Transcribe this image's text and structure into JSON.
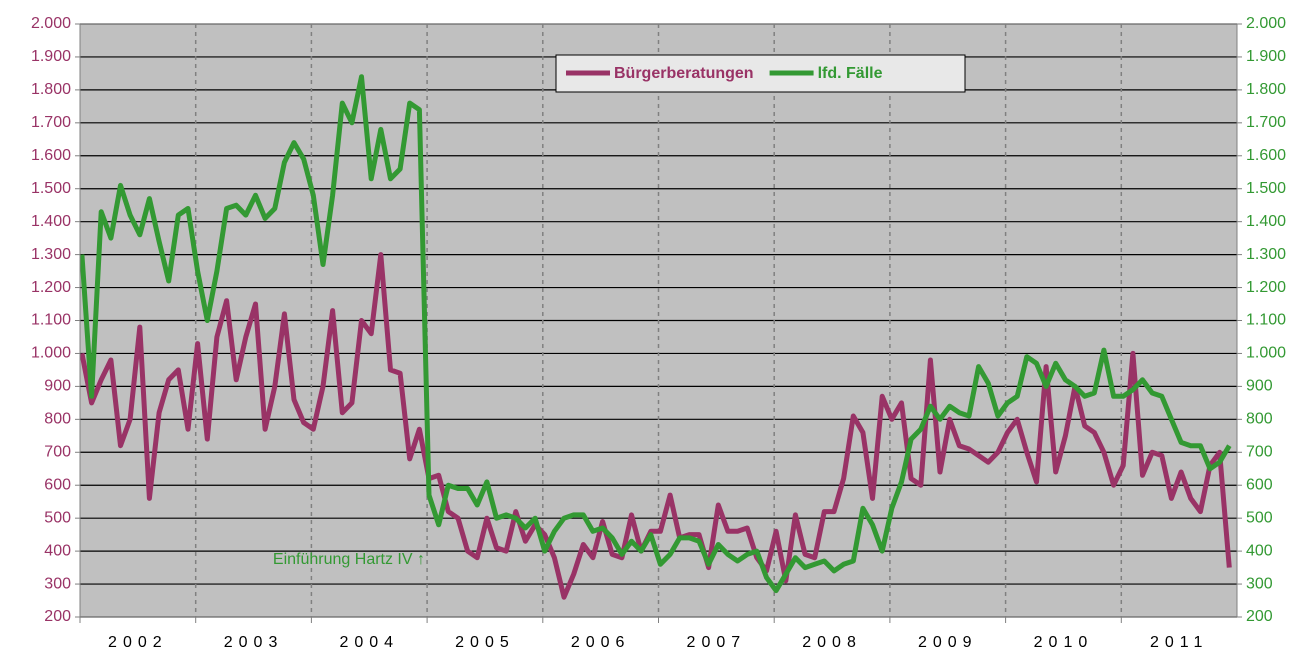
{
  "chart_data": {
    "type": "line",
    "categories": [
      null,
      null,
      null,
      null,
      null,
      "2002",
      null,
      null,
      null,
      null,
      null,
      null,
      null,
      null,
      null,
      null,
      null,
      "2003",
      null,
      null,
      null,
      null,
      null,
      null,
      null,
      null,
      null,
      null,
      null,
      "2004",
      null,
      null,
      null,
      null,
      null,
      null,
      null,
      null,
      null,
      null,
      null,
      "2005",
      null,
      null,
      null,
      null,
      null,
      null,
      null,
      null,
      null,
      null,
      null,
      "2006",
      null,
      null,
      null,
      null,
      null,
      null,
      null,
      null,
      null,
      null,
      null,
      "2007",
      null,
      null,
      null,
      null,
      null,
      null,
      null,
      null,
      null,
      null,
      null,
      "2008",
      null,
      null,
      null,
      null,
      null,
      null,
      null,
      null,
      null,
      null,
      null,
      "2009",
      null,
      null,
      null,
      null,
      null,
      null,
      null,
      null,
      null,
      null,
      null,
      "2010",
      null,
      null,
      null,
      null,
      null,
      null,
      null,
      null,
      null,
      null,
      null,
      "2011",
      null,
      null,
      null,
      null,
      null,
      null
    ],
    "series": [
      {
        "name": "Bürgerberatungen",
        "color": "#993366",
        "values": [
          1000,
          850,
          920,
          980,
          720,
          800,
          1080,
          560,
          820,
          920,
          950,
          770,
          1030,
          740,
          1050,
          1160,
          920,
          1050,
          1150,
          770,
          900,
          1120,
          860,
          790,
          770,
          900,
          1130,
          820,
          850,
          1100,
          1060,
          1300,
          950,
          940,
          680,
          770,
          620,
          630,
          520,
          500,
          400,
          380,
          500,
          410,
          400,
          520,
          430,
          480,
          450,
          380,
          260,
          330,
          420,
          380,
          490,
          390,
          380,
          510,
          400,
          460,
          460,
          570,
          440,
          450,
          450,
          350,
          540,
          460,
          460,
          470,
          380,
          340,
          460,
          310,
          510,
          390,
          380,
          520,
          520,
          620,
          810,
          760,
          560,
          870,
          800,
          850,
          620,
          600,
          980,
          640,
          800,
          720,
          710,
          690,
          670,
          700,
          760,
          800,
          700,
          610,
          960,
          640,
          750,
          900,
          780,
          760,
          700,
          600,
          660,
          1000,
          630,
          700,
          690,
          560,
          640,
          560,
          520,
          660,
          700,
          350
        ]
      },
      {
        "name": "lfd. Fälle",
        "color": "#339933",
        "axis": "y2",
        "values": [
          1300,
          870,
          1430,
          1350,
          1510,
          1420,
          1360,
          1470,
          1340,
          1220,
          1420,
          1440,
          1250,
          1100,
          1250,
          1440,
          1450,
          1420,
          1480,
          1410,
          1440,
          1580,
          1640,
          1590,
          1480,
          1270,
          1480,
          1760,
          1700,
          1840,
          1530,
          1680,
          1530,
          1560,
          1760,
          1740,
          570,
          480,
          600,
          590,
          590,
          540,
          610,
          500,
          510,
          500,
          470,
          500,
          400,
          460,
          500,
          510,
          510,
          460,
          470,
          440,
          390,
          430,
          400,
          450,
          360,
          390,
          440,
          440,
          430,
          360,
          420,
          390,
          370,
          390,
          400,
          320,
          280,
          330,
          380,
          350,
          360,
          370,
          340,
          360,
          370,
          530,
          480,
          400,
          530,
          610,
          740,
          770,
          840,
          800,
          840,
          820,
          810,
          960,
          910,
          810,
          850,
          870,
          990,
          970,
          900,
          970,
          920,
          900,
          870,
          880,
          1010,
          870,
          870,
          890,
          920,
          880,
          870,
          800,
          730,
          720,
          720,
          650,
          670,
          720
        ]
      }
    ],
    "ylim": [
      200,
      2000
    ],
    "yticks": [
      200,
      300,
      400,
      500,
      600,
      700,
      800,
      900,
      {
        "value": 1000,
        "label": "1.000"
      },
      {
        "value": 1100,
        "label": "1.100"
      },
      {
        "value": 1200,
        "label": "1.200"
      },
      {
        "value": 1300,
        "label": "1.300"
      },
      {
        "value": 1400,
        "label": "1.400"
      },
      {
        "value": 1500,
        "label": "1.500"
      },
      {
        "value": 1600,
        "label": "1.600"
      },
      {
        "value": 1700,
        "label": "1.700"
      },
      {
        "value": 1800,
        "label": "1.800"
      },
      {
        "value": 1900,
        "label": "1.900"
      },
      {
        "value": 2000,
        "label": "2.000"
      }
    ],
    "y2lim": [
      200,
      2000
    ],
    "y2ticks": [
      200,
      300,
      400,
      500,
      600,
      700,
      800,
      900,
      {
        "value": 1000,
        "label": "1.000"
      },
      {
        "value": 1100,
        "label": "1.100"
      },
      {
        "value": 1200,
        "label": "1.200"
      },
      {
        "value": 1300,
        "label": "1.300"
      },
      {
        "value": 1400,
        "label": "1.400"
      },
      {
        "value": 1500,
        "label": "1.500"
      },
      {
        "value": 1600,
        "label": "1.600"
      },
      {
        "value": 1700,
        "label": "1.700"
      },
      {
        "value": 1800,
        "label": "1.800"
      },
      {
        "value": 1900,
        "label": "1.900"
      },
      {
        "value": 2000,
        "label": "2.000"
      }
    ],
    "annotation": "Einführung Hartz IV ↑",
    "grid": true,
    "legend": "top"
  }
}
